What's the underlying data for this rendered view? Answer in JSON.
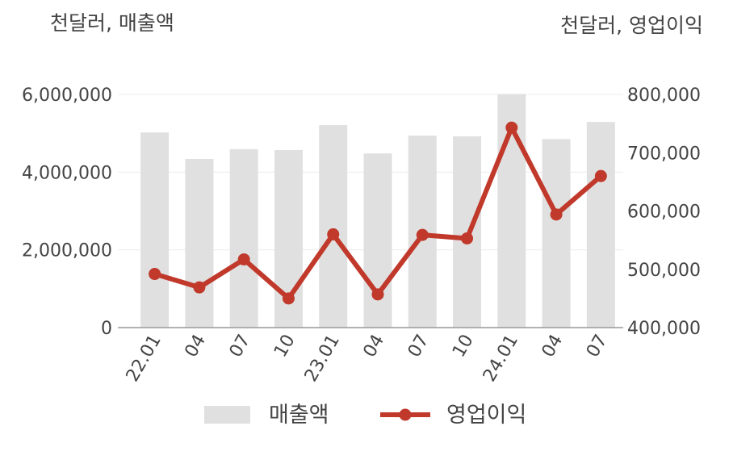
{
  "chart_data": {
    "type": "bar+line",
    "categories": [
      "22.01",
      "04",
      "07",
      "10",
      "23.01",
      "04",
      "07",
      "10",
      "24.01",
      "04",
      "07"
    ],
    "series": [
      {
        "name": "매출액",
        "type": "bar",
        "axis": "left",
        "color": "#e0e0e0",
        "values": [
          5020000,
          4340000,
          4590000,
          4570000,
          5210000,
          4480000,
          4940000,
          4920000,
          6010000,
          4850000,
          5290000
        ]
      },
      {
        "name": "영업이익",
        "type": "line",
        "axis": "right",
        "color": "#c0392b",
        "values": [
          492000,
          469000,
          517000,
          450000,
          560000,
          457000,
          559000,
          553000,
          743000,
          594000,
          660000
        ]
      }
    ],
    "y_left": {
      "unit": "천달러, 매출액",
      "ylim": [
        0,
        6000000
      ],
      "ticks": [
        0,
        2000000,
        4000000,
        6000000
      ],
      "tick_labels": [
        "0",
        "2,000,000",
        "4,000,000",
        "6,000,000"
      ]
    },
    "y_right": {
      "unit": "천달러, 영업이익",
      "ylim": [
        400000,
        800000
      ],
      "ticks": [
        400000,
        500000,
        600000,
        700000,
        800000
      ],
      "tick_labels": [
        "400,000",
        "500,000",
        "600,000",
        "700,000",
        "800,000"
      ]
    },
    "grid": true,
    "legend": "bottom"
  }
}
